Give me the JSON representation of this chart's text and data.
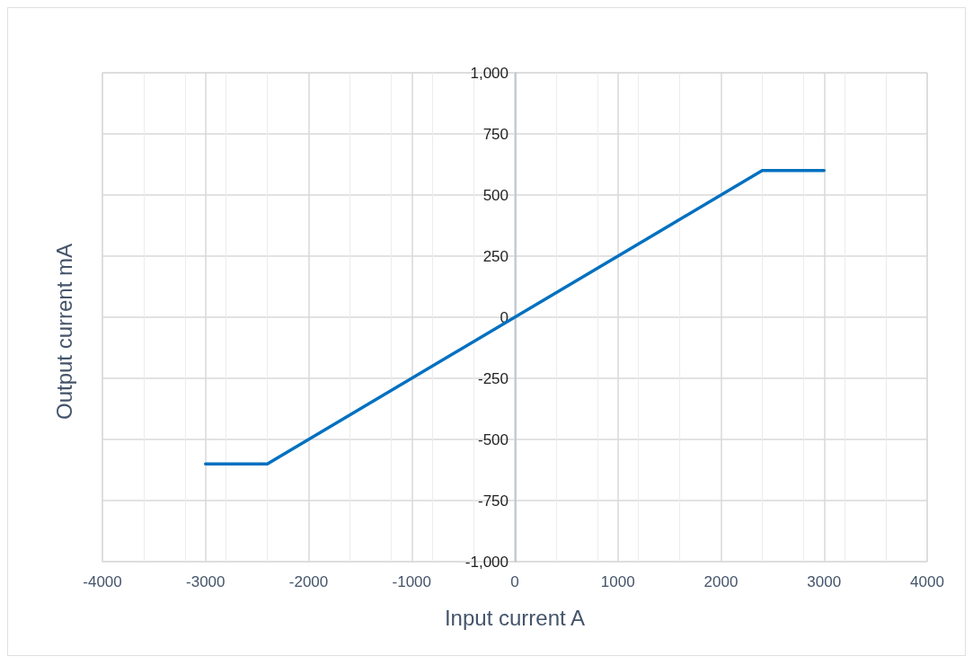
{
  "chart_data": {
    "type": "line",
    "xlabel": "Input current A",
    "ylabel": "Output current mA",
    "series": [
      {
        "color": "#0070c0",
        "x": [
          -3000,
          -2400,
          2400,
          3000
        ],
        "values": [
          -600,
          -600,
          600,
          600
        ]
      }
    ],
    "xlim": [
      -4000,
      4000
    ],
    "xticks": [
      -4000,
      -3000,
      -2000,
      -1000,
      0,
      1000,
      2000,
      3000,
      4000
    ],
    "ylim": [
      -1000,
      1000
    ],
    "yticks": [
      {
        "value": -1000,
        "label": "-1,000"
      },
      -750,
      -500,
      -250,
      0,
      250,
      500,
      750,
      {
        "value": 1000,
        "label": "1,000"
      }
    ],
    "grid": true,
    "marker": "none",
    "line_style": "solid"
  }
}
